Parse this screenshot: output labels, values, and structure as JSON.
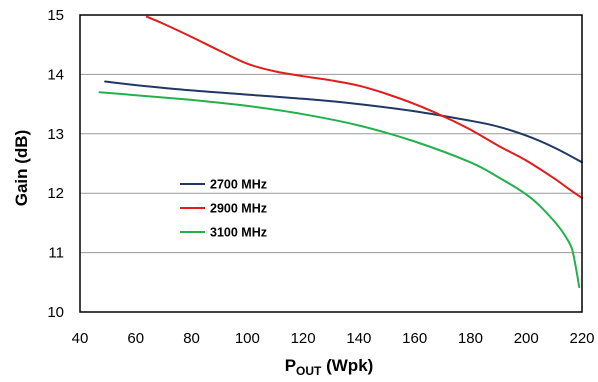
{
  "chart_data": {
    "type": "line",
    "xlabel": {
      "main": "P",
      "sub": "OUT",
      "suffix": " (Wpk)"
    },
    "ylabel": "Gain (dB)",
    "xlim": [
      40,
      220
    ],
    "ylim": [
      10,
      15
    ],
    "xticks": [
      40,
      60,
      80,
      100,
      120,
      140,
      160,
      180,
      200,
      220
    ],
    "yticks": [
      10,
      11,
      12,
      13,
      14,
      15
    ],
    "grid": "horizontal",
    "legend_position": "center-left",
    "series": [
      {
        "name": "2700 MHz",
        "color": "#1f3864",
        "x": [
          49,
          60,
          80,
          100,
          120,
          140,
          160,
          180,
          190,
          200,
          210,
          220
        ],
        "y": [
          13.88,
          13.82,
          13.73,
          13.66,
          13.59,
          13.5,
          13.38,
          13.22,
          13.12,
          12.97,
          12.77,
          12.52
        ]
      },
      {
        "name": "2900 MHz",
        "color": "#e31b1b",
        "x": [
          64,
          70,
          80,
          90,
          100,
          110,
          120,
          130,
          140,
          150,
          160,
          170,
          180,
          190,
          200,
          210,
          215,
          220
        ],
        "y": [
          14.97,
          14.85,
          14.63,
          14.4,
          14.18,
          14.05,
          13.97,
          13.9,
          13.81,
          13.67,
          13.5,
          13.3,
          13.07,
          12.8,
          12.55,
          12.25,
          12.08,
          11.92
        ]
      },
      {
        "name": "3100 MHz",
        "color": "#22b24c",
        "x": [
          47,
          60,
          80,
          100,
          120,
          140,
          160,
          180,
          190,
          200,
          205,
          210,
          213,
          215,
          216.5,
          218,
          219
        ],
        "y": [
          13.7,
          13.65,
          13.57,
          13.47,
          13.33,
          13.14,
          12.87,
          12.52,
          12.27,
          11.98,
          11.78,
          11.53,
          11.35,
          11.2,
          11.05,
          10.7,
          10.42
        ]
      }
    ]
  }
}
